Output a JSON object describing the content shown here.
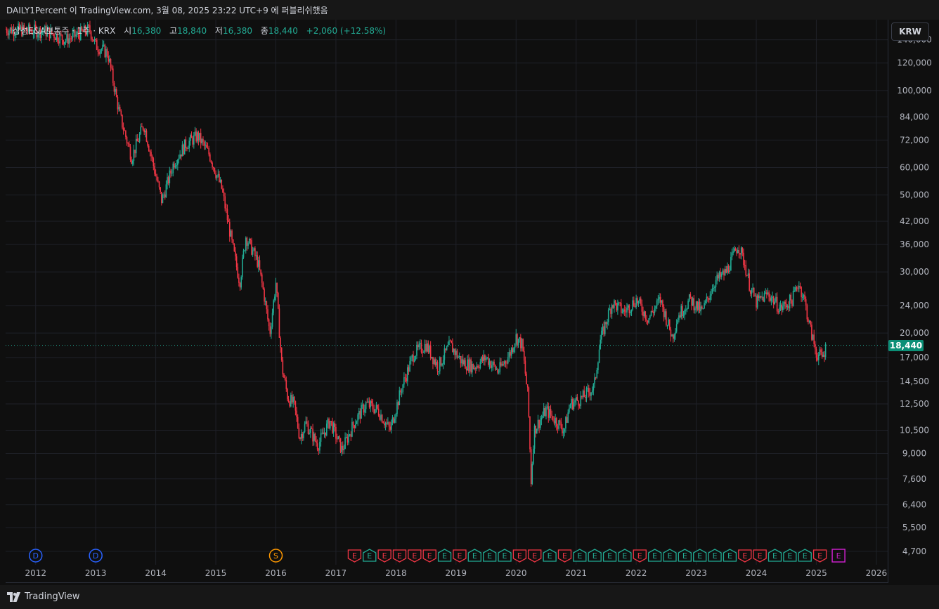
{
  "header": {
    "publisher_line": "DAILY1Percent 이 TradingView.com, 3월 08, 2025 23:22 UTC+9 에 퍼블리쉬했음"
  },
  "legend": {
    "symbol": "삼성E&A보통주 · 1주 · KRX",
    "open_label": "시",
    "open": "16,380",
    "high_label": "고",
    "high": "18,840",
    "low_label": "저",
    "low": "16,380",
    "close_label": "종",
    "close": "18,440",
    "change": "+2,060 (+12.58%)"
  },
  "currency_button": "KRW",
  "last_price_label": "18,440",
  "brand": "TradingView",
  "colors": {
    "background": "#0f0f0f",
    "up": "#22ab94",
    "down": "#f23645",
    "dividend": "#2962ff",
    "split": "#ff9800",
    "future_earnings": "#c71fc7"
  },
  "chart_data": {
    "type": "candlestick",
    "interval": "weekly",
    "currency": "KRW",
    "y_scale": "log",
    "ylim": [
      4300,
      160000
    ],
    "y_ticks": [
      "140,000",
      "120,000",
      "100,000",
      "84,000",
      "72,000",
      "60,000",
      "50,000",
      "42,000",
      "36,000",
      "30,000",
      "24,000",
      "20,000",
      "17,000",
      "14,500",
      "12,500",
      "10,500",
      "9,000",
      "7,600",
      "6,400",
      "5,500",
      "4,700"
    ],
    "x_range": [
      2011.5,
      2026.2
    ],
    "x_ticks": [
      "2012",
      "2013",
      "2014",
      "2015",
      "2016",
      "2017",
      "2018",
      "2019",
      "2020",
      "2021",
      "2022",
      "2023",
      "2024",
      "2025",
      "2026"
    ],
    "last_close": 18440,
    "close_path": [
      [
        2011.5,
        150000
      ],
      [
        2012.2,
        148000
      ],
      [
        2012.5,
        140000
      ],
      [
        2012.9,
        150000
      ],
      [
        2013.0,
        135000
      ],
      [
        2013.2,
        128000
      ],
      [
        2013.4,
        85000
      ],
      [
        2013.6,
        64000
      ],
      [
        2013.8,
        80000
      ],
      [
        2014.1,
        48000
      ],
      [
        2014.3,
        62000
      ],
      [
        2014.5,
        70000
      ],
      [
        2014.7,
        74000
      ],
      [
        2014.9,
        65000
      ],
      [
        2015.1,
        52000
      ],
      [
        2015.3,
        34000
      ],
      [
        2015.4,
        28000
      ],
      [
        2015.5,
        38000
      ],
      [
        2015.7,
        32000
      ],
      [
        2015.8,
        26000
      ],
      [
        2015.9,
        20000
      ],
      [
        2016.0,
        28000
      ],
      [
        2016.1,
        16000
      ],
      [
        2016.2,
        13000
      ],
      [
        2016.3,
        12500
      ],
      [
        2016.4,
        10000
      ],
      [
        2016.5,
        11000
      ],
      [
        2016.7,
        9500
      ],
      [
        2016.9,
        11200
      ],
      [
        2017.1,
        9200
      ],
      [
        2017.3,
        11000
      ],
      [
        2017.5,
        12500
      ],
      [
        2017.7,
        12000
      ],
      [
        2017.9,
        10500
      ],
      [
        2018.1,
        14000
      ],
      [
        2018.3,
        17500
      ],
      [
        2018.5,
        18500
      ],
      [
        2018.7,
        16000
      ],
      [
        2018.9,
        18500
      ],
      [
        2019.1,
        16500
      ],
      [
        2019.3,
        16000
      ],
      [
        2019.5,
        17000
      ],
      [
        2019.7,
        15500
      ],
      [
        2019.9,
        17500
      ],
      [
        2020.0,
        19500
      ],
      [
        2020.1,
        18500
      ],
      [
        2020.2,
        13000
      ],
      [
        2020.25,
        7500
      ],
      [
        2020.3,
        10500
      ],
      [
        2020.5,
        12000
      ],
      [
        2020.7,
        11000
      ],
      [
        2020.8,
        10500
      ],
      [
        2020.9,
        12500
      ],
      [
        2021.1,
        13000
      ],
      [
        2021.3,
        14000
      ],
      [
        2021.4,
        19000
      ],
      [
        2021.6,
        24500
      ],
      [
        2021.8,
        23000
      ],
      [
        2022.0,
        25000
      ],
      [
        2022.2,
        22000
      ],
      [
        2022.4,
        25000
      ],
      [
        2022.6,
        19500
      ],
      [
        2022.7,
        22500
      ],
      [
        2022.9,
        25000
      ],
      [
        2023.1,
        23000
      ],
      [
        2023.3,
        28000
      ],
      [
        2023.5,
        30000
      ],
      [
        2023.7,
        36000
      ],
      [
        2023.8,
        32000
      ],
      [
        2023.9,
        27000
      ],
      [
        2024.0,
        24500
      ],
      [
        2024.2,
        26000
      ],
      [
        2024.4,
        23500
      ],
      [
        2024.6,
        25000
      ],
      [
        2024.7,
        28000
      ],
      [
        2024.8,
        25000
      ],
      [
        2024.9,
        20500
      ],
      [
        2025.0,
        17500
      ],
      [
        2025.1,
        17000
      ],
      [
        2025.17,
        18440
      ]
    ],
    "events": [
      {
        "year": 2012.0,
        "letter": "D",
        "type": "dividend"
      },
      {
        "year": 2013.0,
        "letter": "D",
        "type": "dividend"
      },
      {
        "year": 2016.0,
        "letter": "S",
        "type": "split"
      },
      {
        "year": 2017.31,
        "letter": "E",
        "type": "down"
      },
      {
        "year": 2017.56,
        "letter": "E",
        "type": "up"
      },
      {
        "year": 2017.81,
        "letter": "E",
        "type": "down"
      },
      {
        "year": 2018.06,
        "letter": "E",
        "type": "down"
      },
      {
        "year": 2018.31,
        "letter": "E",
        "type": "down"
      },
      {
        "year": 2018.56,
        "letter": "E",
        "type": "down"
      },
      {
        "year": 2018.81,
        "letter": "E",
        "type": "up"
      },
      {
        "year": 2019.06,
        "letter": "E",
        "type": "down"
      },
      {
        "year": 2019.31,
        "letter": "E",
        "type": "up"
      },
      {
        "year": 2019.56,
        "letter": "E",
        "type": "up"
      },
      {
        "year": 2019.81,
        "letter": "E",
        "type": "up"
      },
      {
        "year": 2020.06,
        "letter": "E",
        "type": "down"
      },
      {
        "year": 2020.31,
        "letter": "E",
        "type": "down"
      },
      {
        "year": 2020.56,
        "letter": "E",
        "type": "up"
      },
      {
        "year": 2020.81,
        "letter": "E",
        "type": "down"
      },
      {
        "year": 2021.06,
        "letter": "E",
        "type": "up"
      },
      {
        "year": 2021.31,
        "letter": "E",
        "type": "up"
      },
      {
        "year": 2021.56,
        "letter": "E",
        "type": "up"
      },
      {
        "year": 2021.81,
        "letter": "E",
        "type": "up"
      },
      {
        "year": 2022.06,
        "letter": "E",
        "type": "down"
      },
      {
        "year": 2022.31,
        "letter": "E",
        "type": "up"
      },
      {
        "year": 2022.56,
        "letter": "E",
        "type": "up"
      },
      {
        "year": 2022.81,
        "letter": "E",
        "type": "up"
      },
      {
        "year": 2023.06,
        "letter": "E",
        "type": "up"
      },
      {
        "year": 2023.31,
        "letter": "E",
        "type": "up"
      },
      {
        "year": 2023.56,
        "letter": "E",
        "type": "up"
      },
      {
        "year": 2023.81,
        "letter": "E",
        "type": "down"
      },
      {
        "year": 2024.06,
        "letter": "E",
        "type": "down"
      },
      {
        "year": 2024.31,
        "letter": "E",
        "type": "up"
      },
      {
        "year": 2024.56,
        "letter": "E",
        "type": "up"
      },
      {
        "year": 2024.81,
        "letter": "E",
        "type": "up"
      },
      {
        "year": 2025.06,
        "letter": "E",
        "type": "down"
      },
      {
        "year": 2025.37,
        "letter": "E",
        "type": "future_earnings"
      }
    ]
  }
}
